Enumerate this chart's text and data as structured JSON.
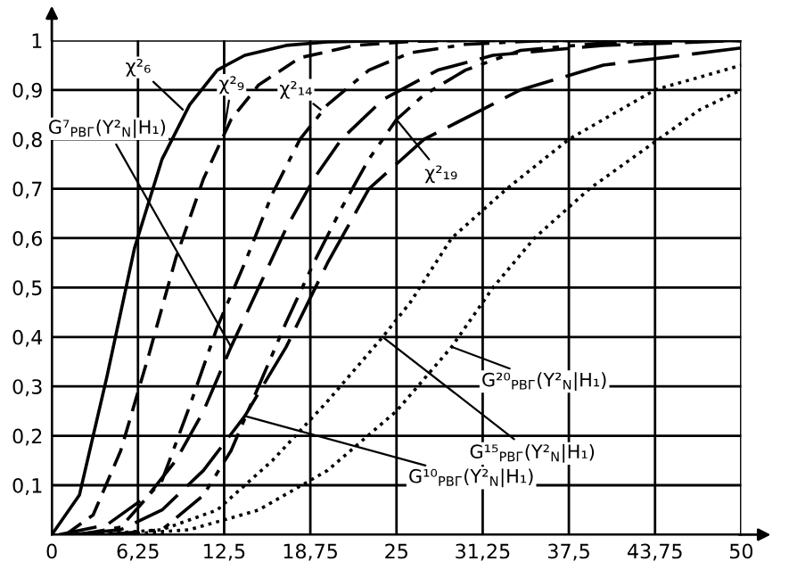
{
  "chart_data": {
    "type": "line",
    "xlim": [
      0,
      50
    ],
    "ylim": [
      0,
      1
    ],
    "xticks": [
      0,
      {
        "value": 6.25,
        "label": "6,25"
      },
      {
        "value": 12.5,
        "label": "12,5"
      },
      {
        "value": 18.75,
        "label": "18,75"
      },
      25,
      {
        "value": 31.25,
        "label": "31,25"
      },
      {
        "value": 37.5,
        "label": "37,5"
      },
      {
        "value": 43.75,
        "label": "43,75"
      },
      50
    ],
    "yticks": [
      {
        "value": 0,
        "label": null
      },
      {
        "value": 0.1,
        "label": "0,1"
      },
      {
        "value": 0.2,
        "label": "0,2"
      },
      {
        "value": 0.3,
        "label": "0,3"
      },
      {
        "value": 0.4,
        "label": "0,4"
      },
      {
        "value": 0.5,
        "label": "0,5"
      },
      {
        "value": 0.6,
        "label": "0,6"
      },
      {
        "value": 0.7,
        "label": "0,7"
      },
      {
        "value": 0.8,
        "label": "0,8"
      },
      {
        "value": 0.9,
        "label": "0,9"
      },
      1
    ],
    "grid": true,
    "marker": "none",
    "series": [
      {
        "color": "#000000",
        "line_style": "solid",
        "x": [
          0,
          2,
          4,
          6,
          8,
          10,
          12,
          14,
          17,
          20,
          25,
          50
        ],
        "values": [
          0,
          0.08,
          0.32,
          0.58,
          0.76,
          0.87,
          0.94,
          0.97,
          0.99,
          0.997,
          1,
          1
        ]
      },
      {
        "color": "#000000",
        "line_style": "dashed",
        "x": [
          1,
          3,
          5,
          7,
          9,
          11,
          13,
          15,
          18,
          22,
          26,
          30,
          50
        ],
        "values": [
          0,
          0.04,
          0.17,
          0.36,
          0.56,
          0.72,
          0.84,
          0.91,
          0.965,
          0.99,
          0.998,
          1,
          1
        ]
      },
      {
        "color": "#000000",
        "line_style": "dashed",
        "x": [
          2,
          5,
          8,
          10,
          12,
          14,
          16,
          18,
          20,
          23,
          26,
          30,
          35,
          40,
          50
        ],
        "values": [
          0,
          0.015,
          0.11,
          0.26,
          0.42,
          0.55,
          0.69,
          0.8,
          0.87,
          0.94,
          0.975,
          0.992,
          0.999,
          1,
          1
        ]
      },
      {
        "color": "#000000",
        "line_style": "dashed",
        "x": [
          4,
          8,
          11,
          13,
          15,
          17,
          19,
          21,
          23,
          25,
          27,
          30,
          34,
          40,
          45,
          50
        ],
        "values": [
          0,
          0.01,
          0.08,
          0.17,
          0.3,
          0.43,
          0.55,
          0.66,
          0.76,
          0.84,
          0.89,
          0.94,
          0.98,
          0.995,
          1,
          1
        ]
      },
      {
        "color": "#000000",
        "line_style": "dashed",
        "x": [
          0.5,
          4,
          7,
          9,
          11,
          13,
          15,
          17,
          19,
          21,
          24,
          28,
          32,
          40,
          50
        ],
        "values": [
          0,
          0.02,
          0.08,
          0.15,
          0.25,
          0.38,
          0.5,
          0.62,
          0.72,
          0.8,
          0.88,
          0.94,
          0.97,
          0.99,
          1
        ]
      },
      {
        "color": "#000000",
        "line_style": "dashed",
        "x": [
          1.5,
          5,
          8,
          11,
          14,
          17,
          20,
          23,
          27,
          34,
          40,
          50
        ],
        "values": [
          0,
          0.01,
          0.05,
          0.13,
          0.24,
          0.38,
          0.55,
          0.7,
          0.8,
          0.9,
          0.95,
          0.985
        ]
      },
      {
        "color": "#000000",
        "line_style": "dotted",
        "x": [
          3,
          8,
          12,
          16,
          20,
          24,
          26,
          29,
          33,
          37.5,
          43.75,
          50
        ],
        "values": [
          0,
          0.01,
          0.05,
          0.15,
          0.27,
          0.4,
          0.47,
          0.6,
          0.7,
          0.8,
          0.9,
          0.95
        ]
      },
      {
        "color": "#000000",
        "line_style": "dotted",
        "x": [
          5,
          10,
          15,
          20,
          25,
          29,
          32,
          35,
          39,
          44,
          47,
          50
        ],
        "values": [
          0,
          0.01,
          0.05,
          0.13,
          0.25,
          0.38,
          0.5,
          0.6,
          0.7,
          0.8,
          0.86,
          0.9
        ]
      }
    ],
    "annotations": [
      {
        "text": "χ²₆",
        "x": 9.5,
        "y": 0.86
      },
      {
        "text": "χ²₉",
        "x": 12.5,
        "y": 0.82
      },
      {
        "text": "χ²₁₄",
        "x": 19.5,
        "y": 0.86
      },
      {
        "text": "χ²₁₉",
        "x": 25,
        "y": 0.84
      },
      {
        "text": "G⁷$_{РВГ}$(Y²$_{N}$|H₁)",
        "x": 13,
        "y": 0.38
      },
      {
        "text": "G¹⁰$_{РВГ}$(Y²$_{N}$|H₁)",
        "x": 14,
        "y": 0.24
      },
      {
        "text": "G¹⁵$_{РВГ}$(Y²$_{N}$|H₁)",
        "x": 24,
        "y": 0.4
      },
      {
        "text": "G²⁰$_{РВГ}$(Y²$_{N}$|H₁)",
        "x": 29,
        "y": 0.38
      }
    ]
  }
}
